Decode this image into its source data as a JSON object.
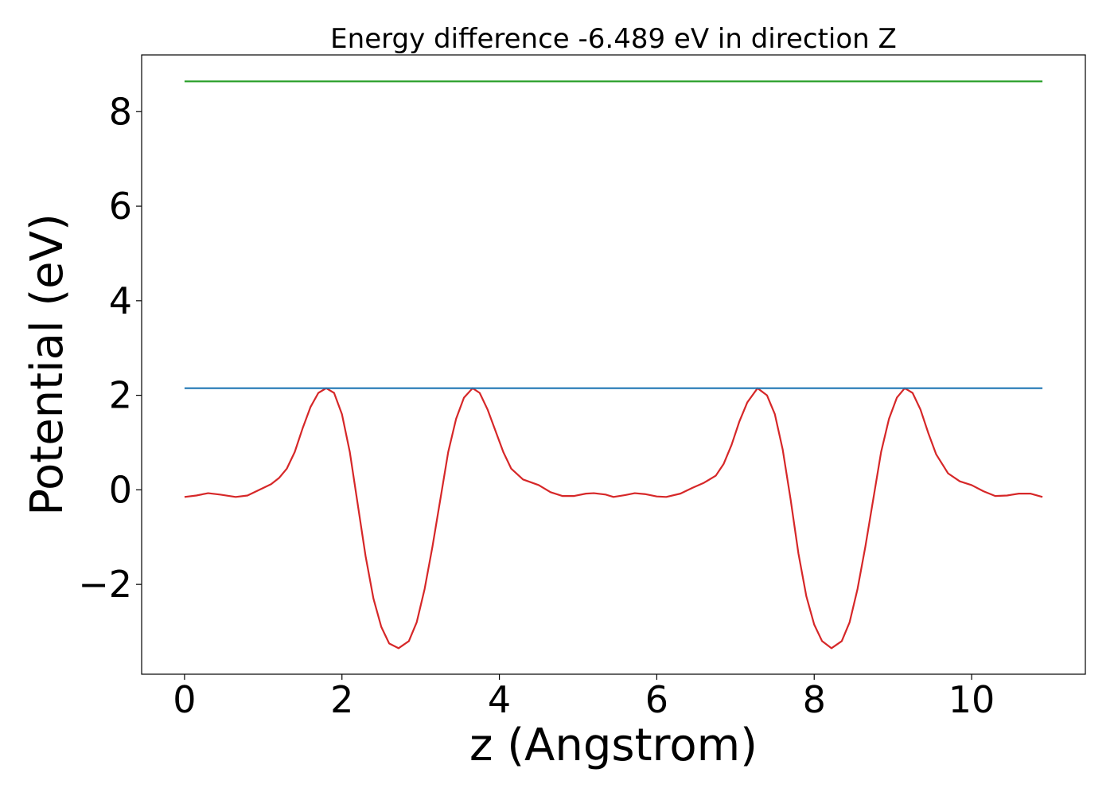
{
  "chart_data": {
    "type": "line",
    "title": "Energy difference -6.489 eV in direction Z",
    "xlabel": "z (Angstrom)",
    "ylabel": "Potential (eV)",
    "xlim": [
      -0.545,
      11.445
    ],
    "ylim": [
      -3.9,
      9.2
    ],
    "xticks": [
      0,
      2,
      4,
      6,
      8,
      10
    ],
    "xtick_labels": [
      "0",
      "2",
      "4",
      "6",
      "8",
      "10"
    ],
    "yticks": [
      -2,
      0,
      2,
      4,
      6,
      8
    ],
    "ytick_labels": [
      "−2",
      "0",
      "2",
      "4",
      "6",
      "8"
    ],
    "grid": false,
    "series": [
      {
        "color": "#d62728",
        "points": [
          [
            0.0,
            -0.15
          ],
          [
            0.15,
            -0.12
          ],
          [
            0.3,
            -0.07
          ],
          [
            0.45,
            -0.1
          ],
          [
            0.65,
            -0.15
          ],
          [
            0.8,
            -0.12
          ],
          [
            0.95,
            0.0
          ],
          [
            1.1,
            0.12
          ],
          [
            1.2,
            0.25
          ],
          [
            1.3,
            0.45
          ],
          [
            1.4,
            0.8
          ],
          [
            1.5,
            1.3
          ],
          [
            1.6,
            1.75
          ],
          [
            1.7,
            2.05
          ],
          [
            1.8,
            2.15
          ],
          [
            1.9,
            2.05
          ],
          [
            2.0,
            1.6
          ],
          [
            2.1,
            0.8
          ],
          [
            2.2,
            -0.3
          ],
          [
            2.3,
            -1.4
          ],
          [
            2.4,
            -2.3
          ],
          [
            2.5,
            -2.9
          ],
          [
            2.6,
            -3.25
          ],
          [
            2.72,
            -3.35
          ],
          [
            2.85,
            -3.2
          ],
          [
            2.95,
            -2.8
          ],
          [
            3.05,
            -2.1
          ],
          [
            3.15,
            -1.2
          ],
          [
            3.25,
            -0.2
          ],
          [
            3.35,
            0.8
          ],
          [
            3.45,
            1.5
          ],
          [
            3.55,
            1.95
          ],
          [
            3.66,
            2.15
          ],
          [
            3.75,
            2.05
          ],
          [
            3.85,
            1.7
          ],
          [
            3.95,
            1.25
          ],
          [
            4.05,
            0.8
          ],
          [
            4.15,
            0.45
          ],
          [
            4.3,
            0.22
          ],
          [
            4.5,
            0.1
          ],
          [
            4.65,
            -0.05
          ],
          [
            4.8,
            -0.13
          ],
          [
            4.95,
            -0.13
          ],
          [
            5.1,
            -0.08
          ],
          [
            5.2,
            -0.07
          ],
          [
            5.35,
            -0.1
          ],
          [
            5.45,
            -0.15
          ],
          [
            5.6,
            -0.11
          ],
          [
            5.72,
            -0.07
          ],
          [
            5.85,
            -0.09
          ],
          [
            6.0,
            -0.14
          ],
          [
            6.12,
            -0.15
          ],
          [
            6.3,
            -0.08
          ],
          [
            6.45,
            0.04
          ],
          [
            6.6,
            0.15
          ],
          [
            6.75,
            0.3
          ],
          [
            6.85,
            0.55
          ],
          [
            6.95,
            0.95
          ],
          [
            7.05,
            1.45
          ],
          [
            7.15,
            1.85
          ],
          [
            7.28,
            2.15
          ],
          [
            7.4,
            2.0
          ],
          [
            7.5,
            1.6
          ],
          [
            7.6,
            0.85
          ],
          [
            7.7,
            -0.2
          ],
          [
            7.8,
            -1.35
          ],
          [
            7.9,
            -2.25
          ],
          [
            8.0,
            -2.85
          ],
          [
            8.1,
            -3.2
          ],
          [
            8.22,
            -3.35
          ],
          [
            8.35,
            -3.2
          ],
          [
            8.45,
            -2.8
          ],
          [
            8.55,
            -2.1
          ],
          [
            8.65,
            -1.2
          ],
          [
            8.75,
            -0.2
          ],
          [
            8.85,
            0.8
          ],
          [
            8.95,
            1.5
          ],
          [
            9.05,
            1.95
          ],
          [
            9.15,
            2.15
          ],
          [
            9.25,
            2.05
          ],
          [
            9.35,
            1.7
          ],
          [
            9.45,
            1.2
          ],
          [
            9.55,
            0.75
          ],
          [
            9.7,
            0.35
          ],
          [
            9.85,
            0.18
          ],
          [
            10.0,
            0.1
          ],
          [
            10.15,
            -0.03
          ],
          [
            10.3,
            -0.13
          ],
          [
            10.45,
            -0.12
          ],
          [
            10.6,
            -0.08
          ],
          [
            10.75,
            -0.08
          ],
          [
            10.9,
            -0.15
          ]
        ]
      },
      {
        "color": "#1f77b4",
        "points": [
          [
            0.0,
            2.15
          ],
          [
            10.9,
            2.15
          ]
        ]
      },
      {
        "color": "#2ca02c",
        "points": [
          [
            0.0,
            8.64
          ],
          [
            10.9,
            8.64
          ]
        ]
      }
    ]
  }
}
